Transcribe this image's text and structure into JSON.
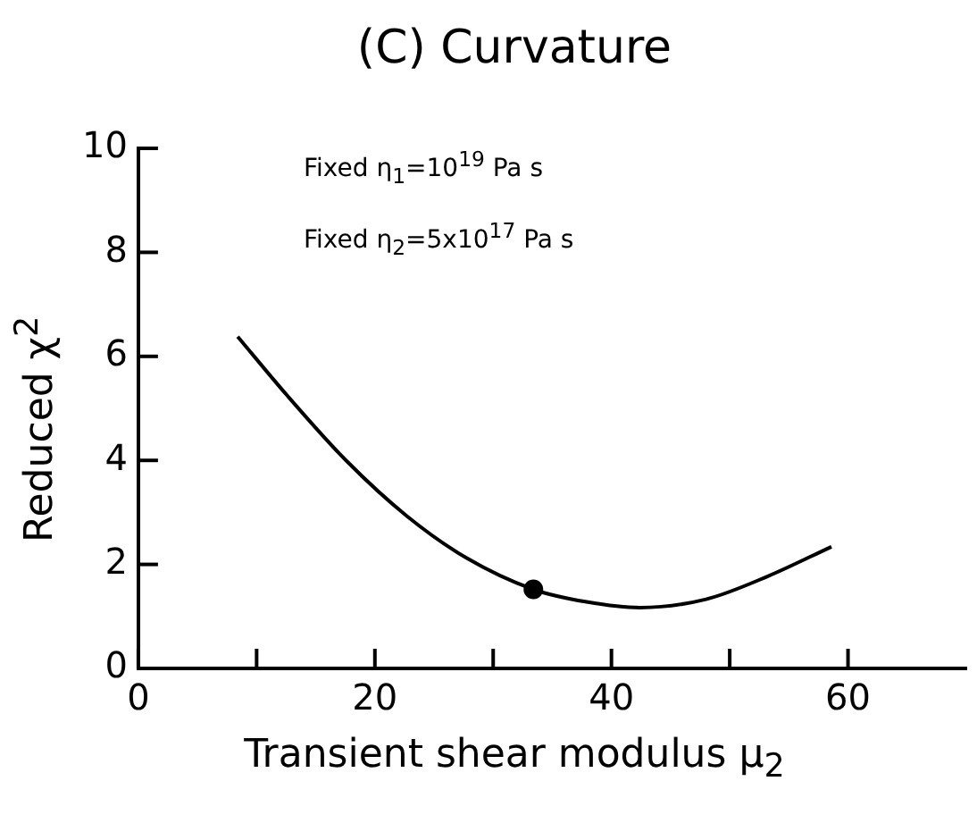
{
  "chart_data": {
    "type": "line",
    "title": "(C) Curvature",
    "xlabel": "Transient shear modulus μ$_{2}$",
    "ylabel": "Reduced χ$^{2}$",
    "annotations": [
      "Fixed η$_{1}$=10$^{19}$ Pa s",
      "Fixed η$_{2}$=5x10$^{17}$ Pa s"
    ],
    "series": [
      {
        "color": "#000000",
        "x": [
          8.4,
          12.5,
          17.6,
          22.7,
          27.7,
          33.4,
          37.9,
          42.4,
          48.0,
          53.1,
          58.6
        ],
        "values": [
          6.38,
          5.27,
          3.99,
          2.93,
          2.13,
          1.52,
          1.28,
          1.17,
          1.33,
          1.76,
          2.34
        ]
      },
      {
        "type": "scatter",
        "color": "#000000",
        "x": [
          33.4
        ],
        "values": [
          1.52
        ],
        "marker": "circle"
      }
    ],
    "xlim": [
      0,
      70
    ],
    "xticks": [
      0,
      {
        "value": 10,
        "label": null
      },
      20,
      {
        "value": 30,
        "label": null
      },
      40,
      {
        "value": 50,
        "label": null
      },
      60
    ],
    "ylim": [
      0,
      10
    ],
    "yticks": [
      0,
      2,
      4,
      6,
      8,
      10
    ],
    "grid": false,
    "legend": false,
    "marker": "none",
    "line_style": "solid"
  }
}
